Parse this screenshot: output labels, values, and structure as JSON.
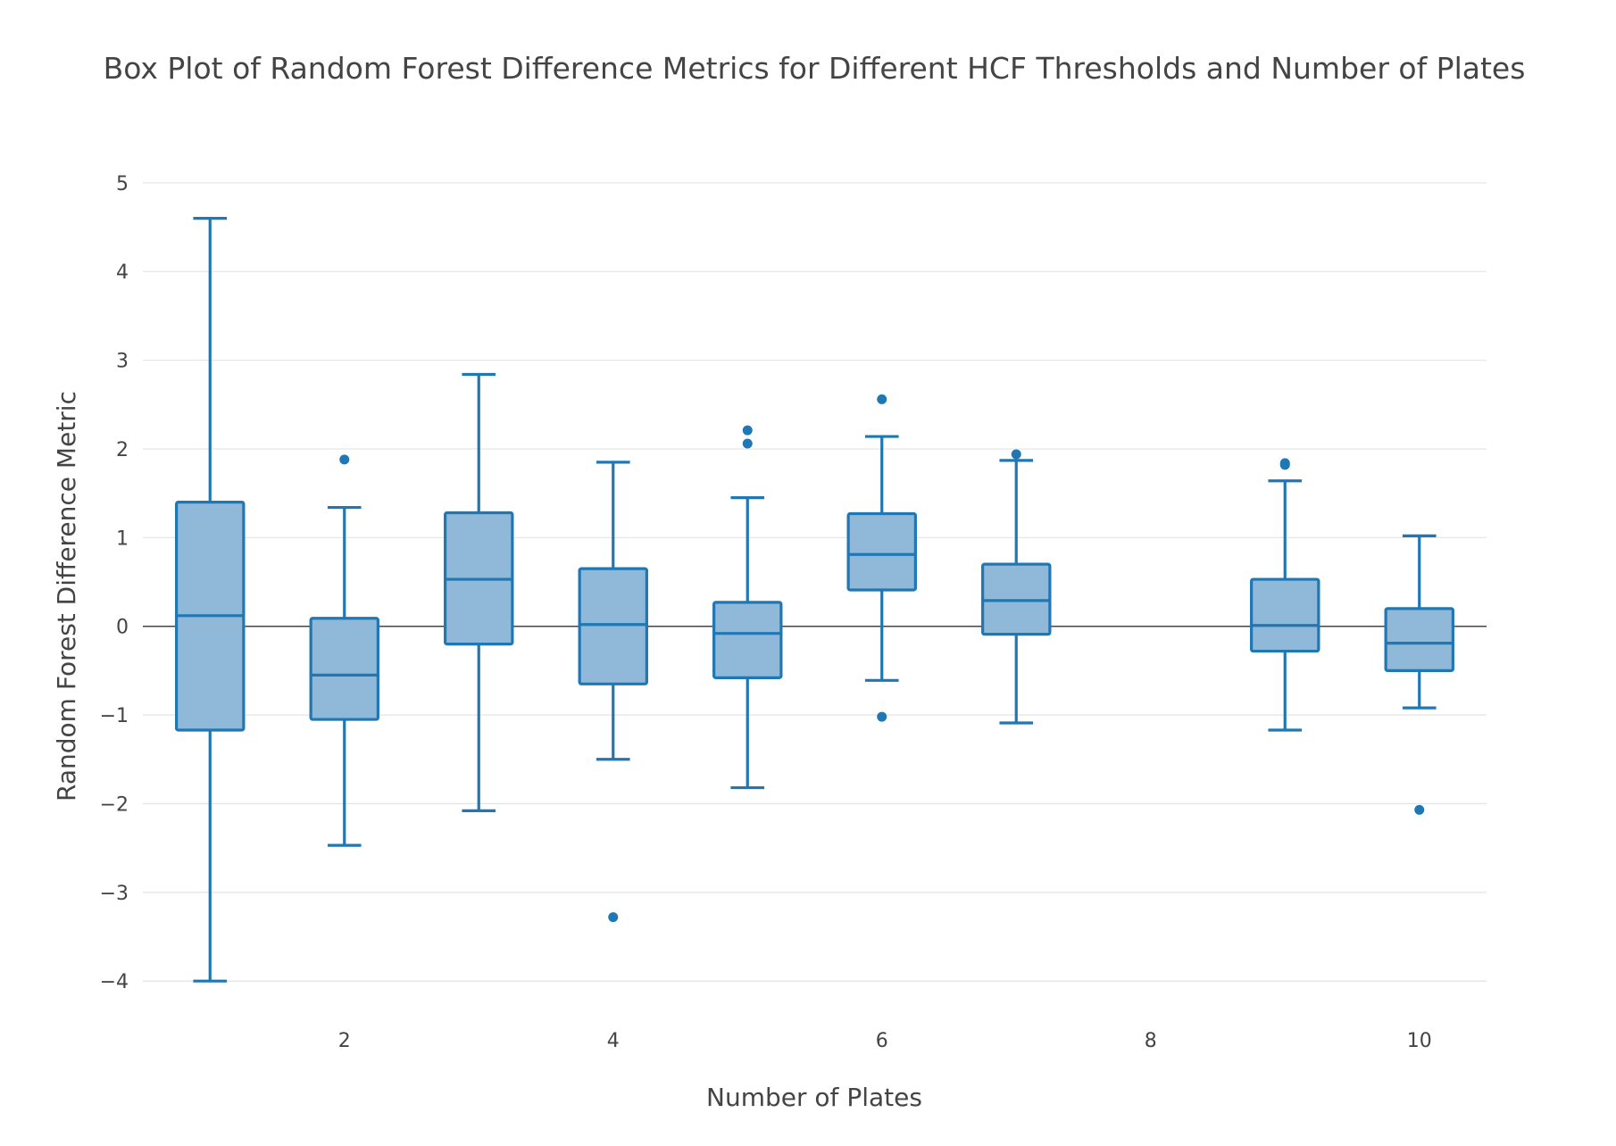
{
  "chart_data": {
    "type": "box",
    "title": "Box Plot of Random Forest Difference Metrics for Different HCF Thresholds and Number of Plates",
    "xlabel": "Number of Plates",
    "ylabel": "Random Forest Difference Metric",
    "xlim": [
      0.5,
      10.5
    ],
    "ylim": [
      -4.3,
      5.2
    ],
    "x_ticks": [
      2,
      4,
      6,
      8,
      10
    ],
    "y_ticks": [
      -4,
      -3,
      -2,
      -1,
      0,
      1,
      2,
      3,
      4,
      5
    ],
    "y_tick_labels": [
      "−4",
      "−3",
      "−2",
      "−1",
      "0",
      "1",
      "2",
      "3",
      "4",
      "5"
    ],
    "grid": true,
    "zero_line": true,
    "color": "#1f77b4",
    "fill_color": "#8fb8d9",
    "boxes": [
      {
        "x": 1,
        "whisker_low": -4.0,
        "q1": -1.17,
        "median": 0.12,
        "q3": 1.4,
        "whisker_high": 4.6,
        "outliers": []
      },
      {
        "x": 2,
        "whisker_low": -2.47,
        "q1": -1.05,
        "median": -0.55,
        "q3": 0.09,
        "whisker_high": 1.34,
        "outliers": [
          1.88
        ]
      },
      {
        "x": 3,
        "whisker_low": -2.08,
        "q1": -0.2,
        "median": 0.53,
        "q3": 1.28,
        "whisker_high": 2.84,
        "outliers": []
      },
      {
        "x": 4,
        "whisker_low": -1.5,
        "q1": -0.65,
        "median": 0.02,
        "q3": 0.65,
        "whisker_high": 1.85,
        "outliers": [
          -3.28
        ]
      },
      {
        "x": 5,
        "whisker_low": -1.82,
        "q1": -0.58,
        "median": -0.08,
        "q3": 0.27,
        "whisker_high": 1.45,
        "outliers": [
          2.06,
          2.21
        ]
      },
      {
        "x": 6,
        "whisker_low": -0.61,
        "q1": 0.41,
        "median": 0.81,
        "q3": 1.27,
        "whisker_high": 2.14,
        "outliers": [
          2.56,
          -1.02
        ]
      },
      {
        "x": 7,
        "whisker_low": -1.09,
        "q1": -0.09,
        "median": 0.29,
        "q3": 0.7,
        "whisker_high": 1.87,
        "outliers": [
          1.94
        ]
      },
      {
        "x": 9,
        "whisker_low": -1.17,
        "q1": -0.28,
        "median": 0.01,
        "q3": 0.53,
        "whisker_high": 1.64,
        "outliers": [
          1.82,
          1.84
        ]
      },
      {
        "x": 10,
        "whisker_low": -0.92,
        "q1": -0.5,
        "median": -0.19,
        "q3": 0.2,
        "whisker_high": 1.02,
        "outliers": [
          -2.07
        ]
      }
    ]
  }
}
